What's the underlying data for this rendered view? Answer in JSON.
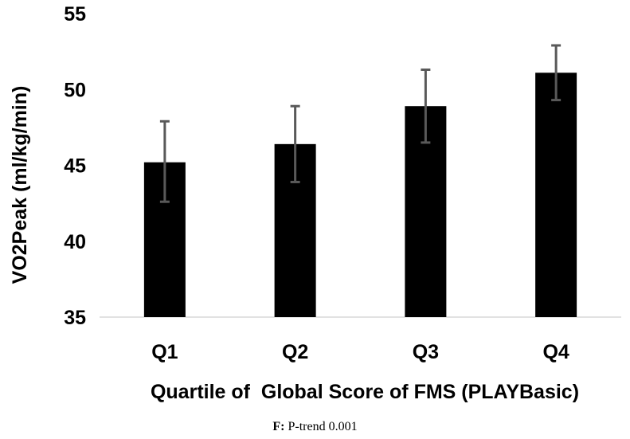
{
  "chart_data": {
    "type": "bar",
    "categories": [
      "Q1",
      "Q2",
      "Q3",
      "Q4"
    ],
    "values": [
      45.2,
      46.4,
      48.9,
      51.1
    ],
    "error_low": [
      42.6,
      43.9,
      46.5,
      49.3
    ],
    "error_high": [
      47.9,
      48.9,
      51.3,
      52.9
    ],
    "xlabel": "Quartile of  Global Score of FMS (PLAYBasic)",
    "ylabel": "VO2Peak (ml/kg/min)",
    "ylim": [
      35,
      55
    ],
    "yticks": [
      35,
      40,
      45,
      50,
      55
    ],
    "grid": false,
    "bar_color": "#000000",
    "error_color": "#595959",
    "axis_color": "#d9d9d9"
  },
  "caption": {
    "prefix": "F:",
    "text": " P-trend 0.001"
  }
}
